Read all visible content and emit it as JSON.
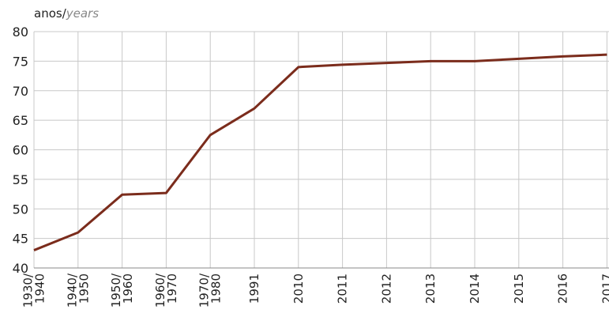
{
  "chart_data": {
    "type": "line",
    "ylabel": "anos/",
    "ylabel_translation": "years",
    "categories": [
      "1930/\n1940",
      "1940/\n1950",
      "1950/\n1960",
      "1960/\n1970",
      "1970/\n1980",
      "1991",
      "2010",
      "2011",
      "2012",
      "2013",
      "2014",
      "2015",
      "2016",
      "2017"
    ],
    "values": [
      43,
      46,
      52.4,
      52.7,
      62.5,
      67,
      74,
      74.4,
      74.7,
      75,
      75,
      75.4,
      75.8,
      76.1
    ],
    "color": "#7b2c1c",
    "ylim": [
      40,
      80
    ],
    "yticks": [
      40,
      45,
      50,
      55,
      60,
      65,
      70,
      75,
      80
    ],
    "grid": true
  }
}
